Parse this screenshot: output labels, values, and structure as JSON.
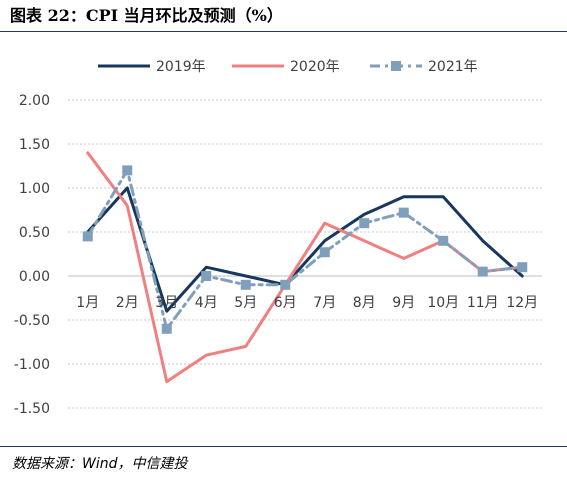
{
  "header": {
    "title": "图表 22：CPI 当月环比及预测（%）"
  },
  "footer": {
    "source": "数据来源：Wind，中信建投"
  },
  "chart_data": {
    "type": "line",
    "title": "图表 22：CPI 当月环比及预测（%）",
    "xlabel": "",
    "ylabel": "",
    "categories": [
      "1月",
      "2月",
      "3月",
      "4月",
      "5月",
      "6月",
      "7月",
      "8月",
      "9月",
      "10月",
      "11月",
      "12月"
    ],
    "yticks": [
      "2.00",
      "1.50",
      "1.00",
      "0.50",
      "0.00",
      "-0.50",
      "-1.00",
      "-1.50"
    ],
    "ylim": [
      -1.5,
      2.0
    ],
    "grid": "horizontal-dashed",
    "legend_position": "top",
    "series": [
      {
        "name": "2019年",
        "color": "#17375e",
        "style": "solid",
        "marker": "none",
        "values": [
          0.5,
          1.0,
          -0.4,
          0.1,
          0.0,
          -0.1,
          0.4,
          0.7,
          0.9,
          0.9,
          0.4,
          0.0
        ]
      },
      {
        "name": "2020年",
        "color": "#f08080",
        "style": "solid",
        "marker": "none",
        "values": [
          1.4,
          0.8,
          -1.2,
          -0.9,
          -0.8,
          -0.1,
          0.6,
          0.4,
          0.2,
          0.4,
          0.05,
          0.1
        ]
      },
      {
        "name": "2021年",
        "color": "#7f9fba",
        "style": "dash-dot",
        "marker": "square",
        "values": [
          0.45,
          1.2,
          -0.6,
          0.0,
          -0.1,
          -0.1,
          0.27,
          0.6,
          0.72,
          0.4,
          0.05,
          0.1
        ]
      }
    ]
  }
}
